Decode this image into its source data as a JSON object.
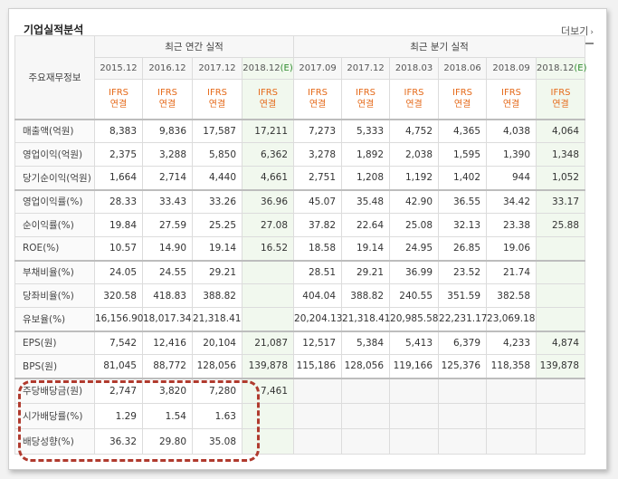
{
  "header": {
    "title": "기업실적분석",
    "more_label": "더보기",
    "more_icon": "chevron-right-icon"
  },
  "table": {
    "row_header_label": "주요재무정보",
    "groups": {
      "annual": "최근 연간 실적",
      "quarterly": "최근 분기 실적"
    },
    "annual_periods": [
      "2015.12",
      "2016.12",
      "2017.12",
      "2018.12"
    ],
    "quarter_periods": [
      "2017.09",
      "2017.12",
      "2018.03",
      "2018.06",
      "2018.09",
      "2018.12"
    ],
    "estimate_mark": "(E)",
    "ifrs_line1": "IFRS",
    "ifrs_line2": "연결",
    "rows": [
      {
        "label": "매출액(억원)",
        "annual": [
          "8,383",
          "9,836",
          "17,587",
          "17,211"
        ],
        "quarterly": [
          "7,273",
          "5,333",
          "4,752",
          "4,365",
          "4,038",
          "4,064"
        ]
      },
      {
        "label": "영업이익(억원)",
        "annual": [
          "2,375",
          "3,288",
          "5,850",
          "6,362"
        ],
        "quarterly": [
          "3,278",
          "1,892",
          "2,038",
          "1,595",
          "1,390",
          "1,348"
        ]
      },
      {
        "label": "당기순이익(억원)",
        "annual": [
          "1,664",
          "2,714",
          "4,440",
          "4,661"
        ],
        "quarterly": [
          "2,751",
          "1,208",
          "1,192",
          "1,402",
          "944",
          "1,052"
        ]
      },
      {
        "label": "영업이익률(%)",
        "annual": [
          "28.33",
          "33.43",
          "33.26",
          "36.96"
        ],
        "quarterly": [
          "45.07",
          "35.48",
          "42.90",
          "36.55",
          "34.42",
          "33.17"
        ]
      },
      {
        "label": "순이익률(%)",
        "annual": [
          "19.84",
          "27.59",
          "25.25",
          "27.08"
        ],
        "quarterly": [
          "37.82",
          "22.64",
          "25.08",
          "32.13",
          "23.38",
          "25.88"
        ]
      },
      {
        "label": "ROE(%)",
        "annual": [
          "10.57",
          "14.90",
          "19.14",
          "16.52"
        ],
        "quarterly": [
          "18.58",
          "19.14",
          "24.95",
          "26.85",
          "19.06",
          ""
        ]
      },
      {
        "label": "부채비율(%)",
        "annual": [
          "24.05",
          "24.55",
          "29.21",
          ""
        ],
        "quarterly": [
          "28.51",
          "29.21",
          "36.99",
          "23.52",
          "21.74",
          ""
        ]
      },
      {
        "label": "당좌비율(%)",
        "annual": [
          "320.58",
          "418.83",
          "388.82",
          ""
        ],
        "quarterly": [
          "404.04",
          "388.82",
          "240.55",
          "351.59",
          "382.58",
          ""
        ]
      },
      {
        "label": "유보율(%)",
        "annual": [
          "16,156.90",
          "18,017.34",
          "21,318.41",
          ""
        ],
        "quarterly": [
          "20,204.13",
          "21,318.41",
          "20,985.58",
          "22,231.17",
          "23,069.18",
          ""
        ]
      },
      {
        "label": "EPS(원)",
        "annual": [
          "7,542",
          "12,416",
          "20,104",
          "21,087"
        ],
        "quarterly": [
          "12,517",
          "5,384",
          "5,413",
          "6,379",
          "4,233",
          "4,874"
        ]
      },
      {
        "label": "BPS(원)",
        "annual": [
          "81,045",
          "88,772",
          "128,056",
          "139,878"
        ],
        "quarterly": [
          "115,186",
          "128,056",
          "119,166",
          "125,376",
          "118,358",
          "139,878"
        ]
      },
      {
        "label": "주당배당금(원)",
        "annual": [
          "2,747",
          "3,820",
          "7,280",
          "7,461"
        ],
        "quarterly": [
          "",
          "",
          "",
          "",
          "",
          ""
        ]
      },
      {
        "label": "시가배당률(%)",
        "annual": [
          "1.29",
          "1.54",
          "1.63",
          ""
        ],
        "quarterly": [
          "",
          "",
          "",
          "",
          "",
          ""
        ]
      },
      {
        "label": "배당성향(%)",
        "annual": [
          "36.32",
          "29.80",
          "35.08",
          ""
        ],
        "quarterly": [
          "",
          "",
          "",
          "",
          "",
          ""
        ]
      }
    ]
  },
  "colors": {
    "ifrs": "#e56a1a",
    "estimate": "#2e8b2e",
    "highlight_dash": "#b03a2e",
    "shaded_column": "#f1f8ee"
  }
}
